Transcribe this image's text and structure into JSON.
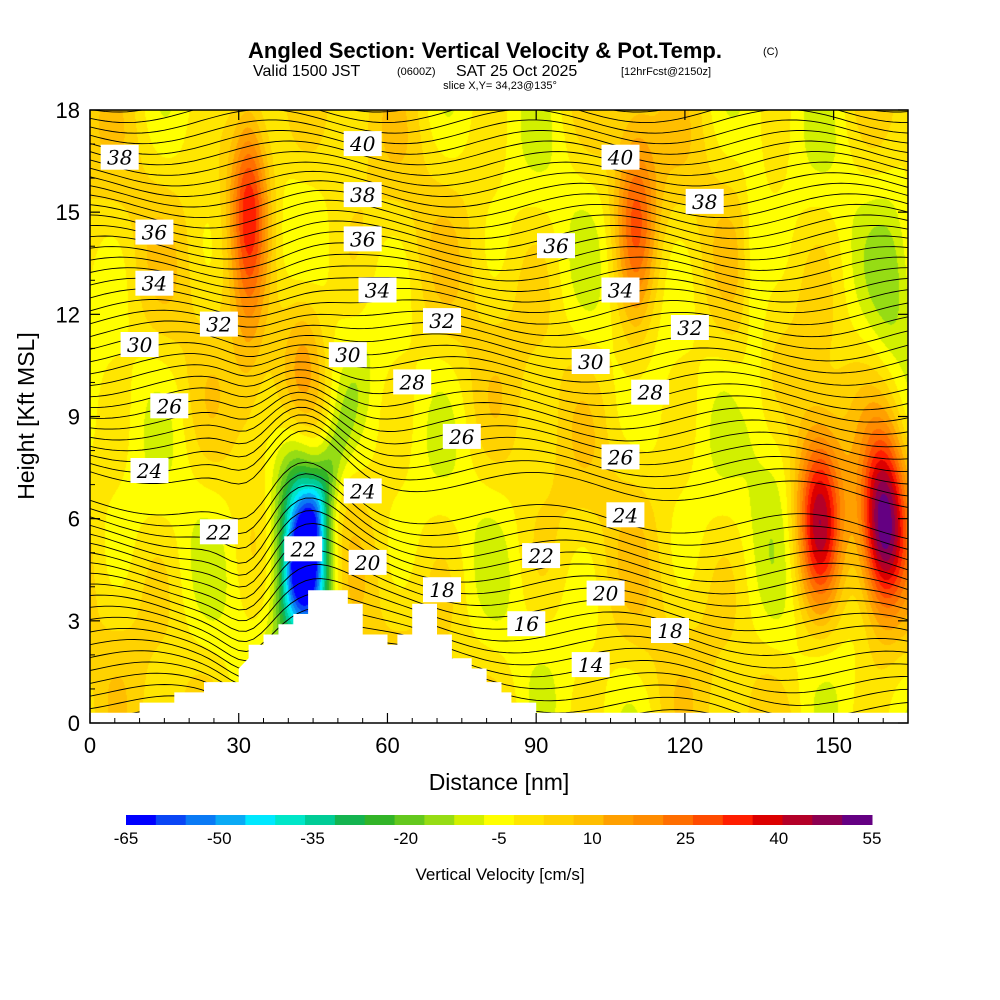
{
  "chart_data": {
    "type": "contour",
    "title": "Angled Section: Vertical Velocity & Pot.Temp.",
    "copyright_mark": "(C)",
    "subtitle_main": "Valid 1500 JST",
    "subtitle_utc": "(0600Z)",
    "subtitle_date": "SAT 25 Oct 2025",
    "subtitle_run": "[12hrFcst@2150z]",
    "slice_text": "slice X,Y= 34,23@135°",
    "xlabel": "Distance [nm]",
    "ylabel": "Height [Kft MSL]",
    "xlim": [
      0,
      165
    ],
    "ylim": [
      0,
      18
    ],
    "x_ticks": [
      "0",
      "30",
      "60",
      "90",
      "120",
      "150"
    ],
    "y_ticks": [
      "0",
      "3",
      "6",
      "9",
      "12",
      "15",
      "18"
    ],
    "colorbar_label": "Vertical Velocity [cm/s]",
    "colorbar_tick_labels": [
      "-65",
      "-50",
      "-35",
      "-20",
      "-5",
      "10",
      "25",
      "40",
      "55"
    ],
    "colorbar_levels": [
      -65,
      -60,
      -55,
      -50,
      -45,
      -40,
      -35,
      -30,
      -25,
      -20,
      -15,
      -10,
      -5,
      0,
      5,
      10,
      15,
      20,
      25,
      30,
      35,
      40,
      45,
      50,
      55
    ],
    "colorbar_colors": [
      "#0000ff",
      "#0a46f5",
      "#0a7af5",
      "#0aaaf5",
      "#00e8ff",
      "#00e6c8",
      "#00cc96",
      "#14b450",
      "#32b428",
      "#64c81e",
      "#96dc14",
      "#d2f000",
      "#ffff00",
      "#ffe600",
      "#ffd200",
      "#ffbe00",
      "#ffa000",
      "#ff8c00",
      "#ff6e00",
      "#ff4b00",
      "#ff1e00",
      "#dc0000",
      "#b40028",
      "#8c0050",
      "#640082"
    ],
    "velocity_features": [
      {
        "x": 44,
        "z": 4.5,
        "w": -60
      },
      {
        "x": 41,
        "z": 6.5,
        "w": -25
      },
      {
        "x": 32,
        "z": 15.5,
        "w": 30
      },
      {
        "x": 43,
        "z": 11,
        "w": 15
      },
      {
        "x": 147,
        "z": 6,
        "w": 45
      },
      {
        "x": 160,
        "z": 5.8,
        "w": 55
      },
      {
        "x": 110,
        "z": 15,
        "w": 20
      },
      {
        "x": 162,
        "z": 13,
        "w": -10
      },
      {
        "x": 138,
        "z": 8,
        "w": -8
      }
    ],
    "theta_contour_labels": [
      {
        "text": "40",
        "x": 55,
        "z": 17.0
      },
      {
        "text": "40",
        "x": 107,
        "z": 16.6
      },
      {
        "text": "38",
        "x": 6,
        "z": 16.6
      },
      {
        "text": "38",
        "x": 55,
        "z": 15.5
      },
      {
        "text": "38",
        "x": 124,
        "z": 15.3
      },
      {
        "text": "36",
        "x": 13,
        "z": 14.4
      },
      {
        "text": "36",
        "x": 55,
        "z": 14.2
      },
      {
        "text": "36",
        "x": 94,
        "z": 14.0
      },
      {
        "text": "34",
        "x": 13,
        "z": 12.9
      },
      {
        "text": "34",
        "x": 58,
        "z": 12.7
      },
      {
        "text": "34",
        "x": 107,
        "z": 12.7
      },
      {
        "text": "32",
        "x": 26,
        "z": 11.7
      },
      {
        "text": "32",
        "x": 71,
        "z": 11.8
      },
      {
        "text": "32",
        "x": 121,
        "z": 11.6
      },
      {
        "text": "30",
        "x": 10,
        "z": 11.1
      },
      {
        "text": "30",
        "x": 52,
        "z": 10.8
      },
      {
        "text": "30",
        "x": 101,
        "z": 10.6
      },
      {
        "text": "28",
        "x": 65,
        "z": 10.0
      },
      {
        "text": "28",
        "x": 113,
        "z": 9.7
      },
      {
        "text": "26",
        "x": 16,
        "z": 9.3
      },
      {
        "text": "26",
        "x": 75,
        "z": 8.4
      },
      {
        "text": "26",
        "x": 107,
        "z": 7.8
      },
      {
        "text": "24",
        "x": 12,
        "z": 7.4
      },
      {
        "text": "24",
        "x": 55,
        "z": 6.8
      },
      {
        "text": "24",
        "x": 108,
        "z": 6.1
      },
      {
        "text": "22",
        "x": 26,
        "z": 5.6
      },
      {
        "text": "22",
        "x": 43,
        "z": 5.1
      },
      {
        "text": "22",
        "x": 91,
        "z": 4.9
      },
      {
        "text": "20",
        "x": 56,
        "z": 4.7
      },
      {
        "text": "20",
        "x": 104,
        "z": 3.8
      },
      {
        "text": "18",
        "x": 71,
        "z": 3.9
      },
      {
        "text": "18",
        "x": 117,
        "z": 2.7
      },
      {
        "text": "16",
        "x": 88,
        "z": 2.9
      },
      {
        "text": "14",
        "x": 101,
        "z": 1.7
      }
    ]
  }
}
